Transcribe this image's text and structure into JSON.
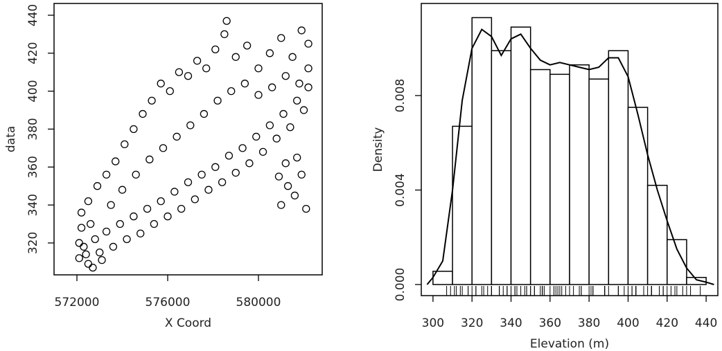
{
  "chart_data": [
    {
      "type": "scatter",
      "x_label": "X Coord",
      "y_label": "data",
      "color": "#000000",
      "x": [
        572100,
        572300,
        572500,
        572800,
        573000,
        573300,
        573600,
        573900,
        574200,
        574500,
        574800,
        575100,
        575400,
        575700,
        576000,
        576300,
        576600,
        576900,
        577200,
        577500,
        577800,
        578100,
        578400,
        578700,
        579000,
        579300,
        579600,
        579900,
        580200,
        580500,
        580800,
        581100,
        581400,
        581700,
        582000,
        582200,
        572200,
        572500,
        572900,
        573300,
        573700,
        574100,
        574500,
        574900,
        575300,
        575700,
        576100,
        576500,
        576900,
        577300,
        577700,
        578100,
        578500,
        578600,
        579000,
        579500,
        580000,
        580500,
        581000,
        581500,
        581900,
        582200,
        573500,
        574000,
        574600,
        575200,
        575800,
        576400,
        577000,
        577600,
        578200,
        578800,
        579400,
        580000,
        580600,
        581200,
        581800,
        582200,
        581000,
        581300,
        581600,
        581900,
        582100,
        581200,
        580900,
        581700,
        572100,
        572200,
        572400,
        572600,
        572700,
        573100
      ],
      "y": [
        312,
        318,
        309,
        322,
        315,
        326,
        318,
        330,
        322,
        334,
        325,
        338,
        330,
        342,
        334,
        347,
        338,
        352,
        343,
        356,
        348,
        360,
        352,
        366,
        357,
        370,
        362,
        376,
        368,
        382,
        375,
        388,
        381,
        395,
        390,
        402,
        336,
        342,
        350,
        356,
        363,
        372,
        380,
        388,
        395,
        404,
        400,
        410,
        408,
        416,
        412,
        422,
        430,
        437,
        418,
        424,
        412,
        420,
        428,
        418,
        432,
        425,
        340,
        348,
        356,
        364,
        370,
        376,
        382,
        388,
        395,
        400,
        404,
        398,
        402,
        408,
        404,
        412,
        340,
        350,
        345,
        356,
        338,
        362,
        355,
        365,
        320,
        328,
        314,
        330,
        307,
        311
      ],
      "xlim": [
        570992,
        582809
      ],
      "ylim": [
        303.2,
        446.2
      ],
      "xticks": [
        572000,
        576000,
        580000
      ],
      "yticks": [
        320,
        340,
        360,
        380,
        400,
        420,
        440
      ]
    },
    {
      "type": "histogram",
      "x_label": "Elevation (m)",
      "y_label": "Density",
      "color": "#000000",
      "fill": "#ffffff",
      "rug": true,
      "bins": [
        300,
        310,
        320,
        330,
        340,
        350,
        360,
        370,
        380,
        390,
        400,
        410,
        420,
        430,
        440
      ],
      "values": [
        0.00056,
        0.0067,
        0.0113,
        0.0099,
        0.0109,
        0.0091,
        0.0089,
        0.0093,
        0.0087,
        0.0099,
        0.0075,
        0.0042,
        0.0019,
        0.0003
      ],
      "density": {
        "x": [
          297,
          300,
          305,
          310,
          315,
          320,
          325,
          330,
          335,
          340,
          345,
          350,
          355,
          360,
          365,
          370,
          375,
          380,
          385,
          390,
          395,
          400,
          405,
          410,
          415,
          420,
          425,
          430,
          435,
          440,
          444
        ],
        "y": [
          0.0,
          0.0003,
          0.001,
          0.004,
          0.0078,
          0.01,
          0.0108,
          0.0105,
          0.0097,
          0.0104,
          0.0106,
          0.01,
          0.0095,
          0.0093,
          0.0094,
          0.0093,
          0.0092,
          0.0091,
          0.0092,
          0.0096,
          0.0096,
          0.0088,
          0.0072,
          0.0055,
          0.004,
          0.0027,
          0.0015,
          0.0007,
          0.0002,
          0.0001,
          0.0
        ]
      },
      "xlim": [
        294,
        446
      ],
      "ylim": [
        -0.00047,
        0.0119
      ],
      "xticks": [
        300,
        320,
        340,
        360,
        380,
        400,
        420,
        440
      ],
      "yticks": [
        {
          "value": 0,
          "label": "0.000"
        },
        {
          "value": 0.004,
          "label": "0.004"
        },
        {
          "value": 0.008,
          "label": "0.008"
        }
      ]
    }
  ]
}
